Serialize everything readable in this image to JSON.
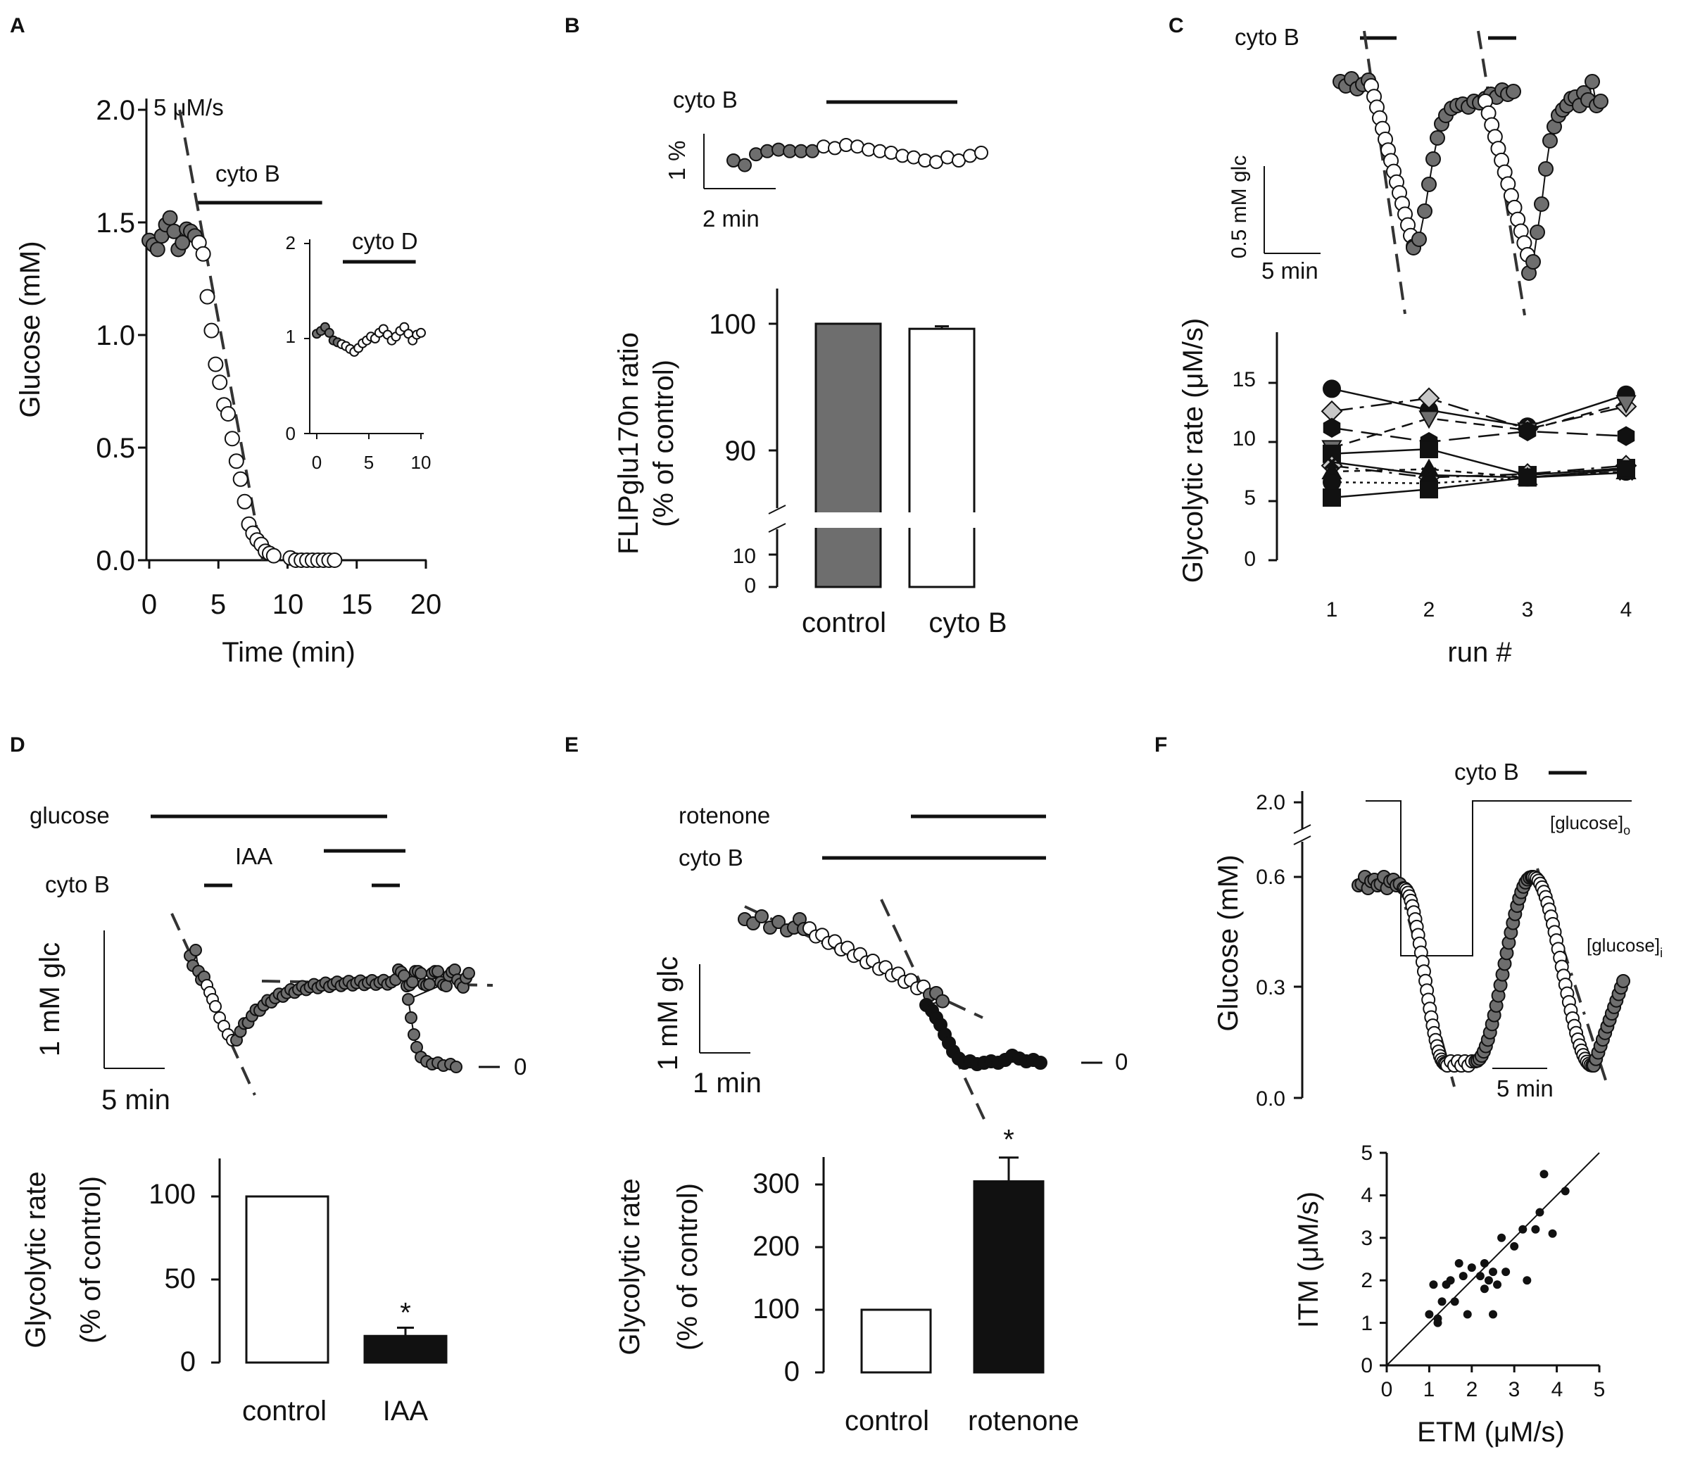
{
  "figure": {
    "panel_letters": [
      "A",
      "B",
      "C",
      "D",
      "E",
      "F"
    ]
  },
  "colors": {
    "gray_fill": "#6e6e6e",
    "open_fill": "#ffffff",
    "black": "#111111",
    "light_gray": "#c8c8c8"
  },
  "chart_data": [
    {
      "panel": "A",
      "type": "scatter",
      "xlabel": "Time (min)",
      "ylabel": "Glucose (mM)",
      "xlim": [
        0,
        20
      ],
      "ylim": [
        0,
        2.0
      ],
      "xticks": [
        "0",
        "5",
        "10",
        "15",
        "20"
      ],
      "yticks": [
        "0.0",
        "0.5",
        "1.0",
        "1.5",
        "2.0"
      ],
      "slope_label": "5 μM/s",
      "drug_label": "cyto B",
      "drug_interval": [
        3.5,
        12.5
      ],
      "fit_line": {
        "x": [
          2.2,
          8.2
        ],
        "y": [
          2.0,
          0.0
        ]
      },
      "series": [
        {
          "name": "control",
          "marker": "gray",
          "x": [
            0.0,
            0.3,
            0.6,
            0.9,
            1.2,
            1.5,
            1.8,
            2.1,
            2.4,
            2.7,
            3.0,
            3.3
          ],
          "y": [
            1.42,
            1.4,
            1.38,
            1.44,
            1.49,
            1.52,
            1.46,
            1.38,
            1.41,
            1.47,
            1.46,
            1.44
          ]
        },
        {
          "name": "cyto B",
          "marker": "open",
          "x": [
            3.6,
            3.9,
            4.2,
            4.5,
            4.8,
            5.1,
            5.4,
            5.7,
            6.0,
            6.3,
            6.6,
            6.9,
            7.2,
            7.5,
            7.8,
            8.1,
            8.4,
            8.7,
            9.0,
            10.2,
            10.6,
            11.0,
            11.4,
            11.8,
            12.2,
            12.6,
            13.0,
            13.4
          ],
          "y": [
            1.41,
            1.36,
            1.17,
            1.02,
            0.87,
            0.79,
            0.69,
            0.65,
            0.54,
            0.44,
            0.36,
            0.26,
            0.16,
            0.12,
            0.09,
            0.07,
            0.04,
            0.03,
            0.02,
            0.01,
            0.0,
            0.0,
            0.0,
            0.0,
            0.0,
            0.0,
            0.0,
            0.0
          ]
        }
      ],
      "inset": {
        "drug_label": "cyto D",
        "xlim": [
          0,
          10
        ],
        "ylim": [
          0,
          2
        ],
        "xticks": [
          "0",
          "5",
          "10"
        ],
        "yticks": [
          "0",
          "1",
          "2"
        ],
        "drug_interval": [
          2.5,
          9.5
        ],
        "series": [
          {
            "name": "control",
            "marker": "gray",
            "x": [
              0.0,
              0.4,
              0.8,
              1.2,
              1.6,
              2.0
            ],
            "y": [
              1.05,
              1.08,
              1.12,
              1.06,
              0.98,
              0.96
            ]
          },
          {
            "name": "cyto D",
            "marker": "open",
            "x": [
              2.4,
              2.8,
              3.2,
              3.6,
              4.0,
              4.4,
              4.8,
              5.2,
              5.6,
              6.0,
              6.4,
              6.8,
              7.2,
              7.6,
              8.0,
              8.4,
              8.8,
              9.2,
              9.6,
              10.0
            ],
            "y": [
              0.94,
              0.92,
              0.89,
              0.86,
              0.9,
              0.95,
              0.98,
              1.02,
              1.0,
              1.06,
              1.1,
              1.04,
              0.98,
              1.02,
              1.08,
              1.12,
              1.05,
              0.98,
              1.04,
              1.06
            ]
          }
        ]
      }
    },
    {
      "panel": "B",
      "type": "bar",
      "trace_label": "cyto B",
      "scale_y_label": "1 %",
      "scale_x_label": "2 min",
      "ylabel_line1": "FLIPglu170n ratio",
      "ylabel_line2": "(% of control)",
      "yticks_upper": [
        "90",
        "100"
      ],
      "yticks_lower": [
        "0",
        "10"
      ],
      "categories": [
        "control",
        "cyto B"
      ],
      "values": [
        100,
        99.6
      ],
      "errors": [
        0,
        0.2
      ],
      "trace": {
        "gray": [
          0.0,
          -0.3,
          0.4,
          0.6,
          0.7,
          0.6,
          0.6,
          0.6
        ],
        "open": [
          0.9,
          0.8,
          1.0,
          0.9,
          0.7,
          0.6,
          0.5,
          0.3,
          0.2,
          0.0,
          -0.1,
          0.2,
          0.0,
          0.3,
          0.5
        ]
      }
    },
    {
      "panel": "C",
      "type": "line",
      "trace_label": "cyto B",
      "scale_y_label": "0.5 mM glc",
      "scale_x_label": "5 min",
      "xlabel": "run #",
      "ylabel": "Glycolytic rate (μM/s)",
      "categories": [
        "1",
        "2",
        "3",
        "4"
      ],
      "yticks": [
        "0",
        "5",
        "10",
        "15"
      ],
      "ylim": [
        0,
        18
      ],
      "series": [
        {
          "marker": "circle",
          "color": "#111111",
          "values": [
            14.5,
            12.7,
            11.3,
            14.0
          ]
        },
        {
          "marker": "diamond",
          "color": "#c8c8c8",
          "values": [
            12.6,
            13.7,
            11.1,
            13.0
          ]
        },
        {
          "marker": "triangle-down",
          "color": "#6e6e6e",
          "values": [
            9.5,
            12.0,
            11.0,
            13.3
          ]
        },
        {
          "marker": "hexagon",
          "color": "#111111",
          "values": [
            11.2,
            10.0,
            10.9,
            10.5
          ]
        },
        {
          "marker": "square",
          "color": "#111111",
          "values": [
            9.0,
            9.4,
            7.2,
            7.8
          ]
        },
        {
          "marker": "diamond",
          "color": "#c8c8c8",
          "values": [
            8.0,
            7.0,
            7.3,
            8.0
          ]
        },
        {
          "marker": "triangle",
          "color": "#111111",
          "values": [
            7.5,
            7.7,
            7.0,
            7.5
          ]
        },
        {
          "marker": "x",
          "color": "#111111",
          "values": [
            8.3,
            7.2,
            7.0,
            7.4
          ]
        },
        {
          "marker": "circle",
          "color": "#111111",
          "values": [
            6.6,
            6.5,
            7.0,
            7.5
          ]
        },
        {
          "marker": "square",
          "color": "#111111",
          "values": [
            5.3,
            6.0,
            7.0,
            7.7
          ]
        }
      ]
    },
    {
      "panel": "D",
      "type": "bar",
      "label_glucose": "glucose",
      "label_iaa": "IAA",
      "label_cyto": "cyto B",
      "scale_y_label": "1 mM glc",
      "scale_x_label": "5 min",
      "zero_label": "0",
      "ylabel_line1": "Glycolytic rate",
      "ylabel_line2": "(% of control)",
      "yticks": [
        "0",
        "50",
        "100"
      ],
      "categories": [
        "control",
        "IAA"
      ],
      "values": [
        100,
        16
      ],
      "errors": [
        0,
        5
      ],
      "significance": "*"
    },
    {
      "panel": "E",
      "type": "bar",
      "label_rotenone": "rotenone",
      "label_cyto": "cyto B",
      "scale_y_label": "1 mM glc",
      "scale_x_label": "1 min",
      "zero_label": "0",
      "ylabel_line1": "Glycolytic rate",
      "ylabel_line2": "(%  of control)",
      "yticks": [
        "0",
        "100",
        "200",
        "300"
      ],
      "categories": [
        "control",
        "rotenone"
      ],
      "values": [
        100,
        305
      ],
      "errors": [
        0,
        38
      ],
      "significance": "*"
    },
    {
      "panel": "F",
      "type": "scatter",
      "trace_label": "cyto B",
      "glucose_o_label": "[glucose]",
      "glucose_o_sub": "o",
      "glucose_i_label": "[glucose]",
      "glucose_i_sub": "i",
      "ylabel": "Glucose (mM)",
      "yticks": [
        "0.0",
        "0.3",
        "0.6",
        "2.0"
      ],
      "scale_x_label": "5 min",
      "scatter_xlabel": "ETM (μM/s)",
      "scatter_ylabel": "ITM (μM/s)",
      "scatter_ticks": [
        "0",
        "1",
        "2",
        "3",
        "4",
        "5"
      ],
      "points": {
        "x": [
          1.0,
          1.1,
          1.2,
          1.2,
          1.3,
          1.4,
          1.6,
          1.7,
          1.8,
          1.9,
          2.0,
          2.2,
          2.3,
          2.3,
          2.4,
          2.5,
          2.5,
          2.7,
          2.8,
          3.0,
          3.2,
          3.3,
          3.5,
          3.6,
          3.7,
          3.9,
          4.2,
          1.5,
          2.6
        ],
        "y": [
          1.2,
          1.9,
          1.0,
          1.1,
          1.5,
          1.9,
          1.5,
          2.4,
          2.1,
          1.2,
          2.3,
          2.1,
          2.4,
          1.8,
          2.0,
          2.2,
          1.2,
          3.0,
          2.2,
          2.8,
          3.2,
          2.0,
          3.2,
          3.6,
          4.5,
          3.1,
          4.1,
          2.0,
          1.9
        ]
      }
    }
  ]
}
